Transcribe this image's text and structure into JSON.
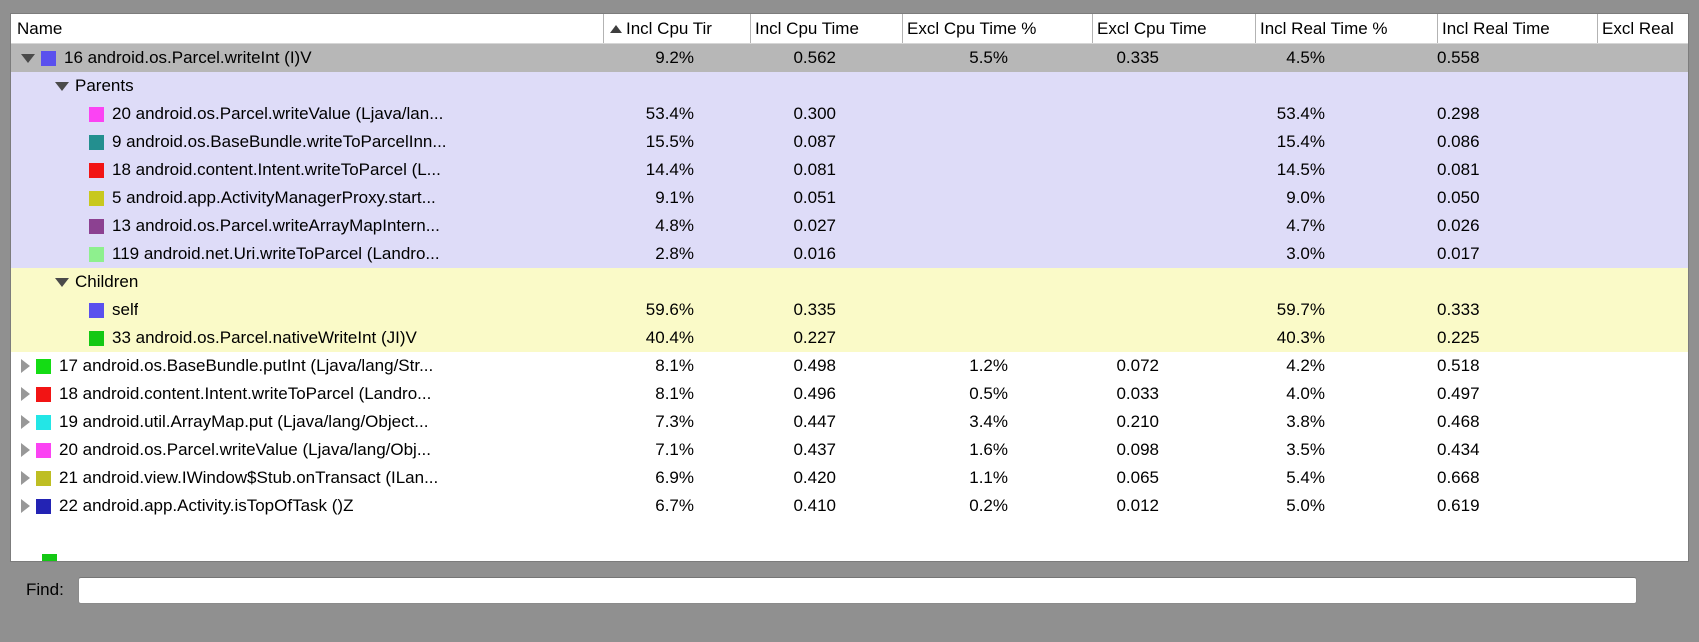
{
  "find": {
    "label": "Find:",
    "value": ""
  },
  "colors": {
    "selected": "#b7b7b7",
    "parents": "#dedcf8",
    "children": "#fafac8",
    "white": "#ffffff",
    "window_chrome": "#909090"
  },
  "table": {
    "columns": [
      {
        "label": "Name",
        "sort": null
      },
      {
        "label": "Incl Cpu Tir",
        "sort": "asc"
      },
      {
        "label": "Incl Cpu Time",
        "sort": null
      },
      {
        "label": "Excl Cpu Time %",
        "sort": null
      },
      {
        "label": "Excl Cpu Time",
        "sort": null
      },
      {
        "label": "Incl Real Time %",
        "sort": null
      },
      {
        "label": "Incl Real Time",
        "sort": null
      },
      {
        "label": "Excl Real",
        "sort": null
      }
    ],
    "rows": [
      {
        "type": "method",
        "state": "expanded",
        "indent": 0,
        "chip": "#5a50ee",
        "bg": "selected",
        "name": "16 android.os.Parcel.writeInt (I)V",
        "values": [
          "9.2%",
          "0.562",
          "5.5%",
          "0.335",
          "4.5%",
          "0.558",
          ""
        ]
      },
      {
        "type": "section",
        "state": "expanded",
        "indent": 1,
        "chip": null,
        "bg": "parents",
        "name": "Parents",
        "values": [
          "",
          "",
          "",
          "",
          "",
          "",
          ""
        ]
      },
      {
        "type": "child",
        "state": null,
        "indent": 2,
        "chip": "#fb43f3",
        "bg": "parents",
        "name": "20 android.os.Parcel.writeValue (Ljava/lan...",
        "values": [
          "53.4%",
          "0.300",
          "",
          "",
          "53.4%",
          "0.298",
          ""
        ]
      },
      {
        "type": "child",
        "state": null,
        "indent": 2,
        "chip": "#238f8f",
        "bg": "parents",
        "name": "9 android.os.BaseBundle.writeToParcelInn...",
        "values": [
          "15.5%",
          "0.087",
          "",
          "",
          "15.4%",
          "0.086",
          ""
        ]
      },
      {
        "type": "child",
        "state": null,
        "indent": 2,
        "chip": "#f21414",
        "bg": "parents",
        "name": "18 android.content.Intent.writeToParcel (L...",
        "values": [
          "14.4%",
          "0.081",
          "",
          "",
          "14.5%",
          "0.081",
          ""
        ]
      },
      {
        "type": "child",
        "state": null,
        "indent": 2,
        "chip": "#c8c81e",
        "bg": "parents",
        "name": "5 android.app.ActivityManagerProxy.start...",
        "values": [
          "9.1%",
          "0.051",
          "",
          "",
          "9.0%",
          "0.050",
          ""
        ]
      },
      {
        "type": "child",
        "state": null,
        "indent": 2,
        "chip": "#8c4191",
        "bg": "parents",
        "name": "13 android.os.Parcel.writeArrayMapIntern...",
        "values": [
          "4.8%",
          "0.027",
          "",
          "",
          "4.7%",
          "0.026",
          ""
        ]
      },
      {
        "type": "child",
        "state": null,
        "indent": 2,
        "chip": "#8ef08e",
        "bg": "parents",
        "name": "119 android.net.Uri.writeToParcel (Landro...",
        "values": [
          "2.8%",
          "0.016",
          "",
          "",
          "3.0%",
          "0.017",
          ""
        ]
      },
      {
        "type": "section",
        "state": "expanded",
        "indent": 1,
        "chip": null,
        "bg": "children",
        "name": "Children",
        "values": [
          "",
          "",
          "",
          "",
          "",
          "",
          ""
        ]
      },
      {
        "type": "child",
        "state": null,
        "indent": 2,
        "chip": "#5a50ee",
        "bg": "children",
        "name": "self",
        "values": [
          "59.6%",
          "0.335",
          "",
          "",
          "59.7%",
          "0.333",
          ""
        ]
      },
      {
        "type": "child",
        "state": null,
        "indent": 2,
        "chip": "#14c814",
        "bg": "children",
        "name": "33 android.os.Parcel.nativeWriteInt (JI)V",
        "values": [
          "40.4%",
          "0.227",
          "",
          "",
          "40.3%",
          "0.225",
          ""
        ]
      },
      {
        "type": "method",
        "state": "collapsed",
        "indent": 0,
        "chip": "#14dc14",
        "bg": "white",
        "name": "17 android.os.BaseBundle.putInt (Ljava/lang/Str...",
        "values": [
          "8.1%",
          "0.498",
          "1.2%",
          "0.072",
          "4.2%",
          "0.518",
          ""
        ]
      },
      {
        "type": "method",
        "state": "collapsed",
        "indent": 0,
        "chip": "#f21414",
        "bg": "white",
        "name": "18 android.content.Intent.writeToParcel (Landro...",
        "values": [
          "8.1%",
          "0.496",
          "0.5%",
          "0.033",
          "4.0%",
          "0.497",
          ""
        ]
      },
      {
        "type": "method",
        "state": "collapsed",
        "indent": 0,
        "chip": "#23e6e6",
        "bg": "white",
        "name": "19 android.util.ArrayMap.put (Ljava/lang/Object...",
        "values": [
          "7.3%",
          "0.447",
          "3.4%",
          "0.210",
          "3.8%",
          "0.468",
          ""
        ]
      },
      {
        "type": "method",
        "state": "collapsed",
        "indent": 0,
        "chip": "#fb43f3",
        "bg": "white",
        "name": "20 android.os.Parcel.writeValue (Ljava/lang/Obj...",
        "values": [
          "7.1%",
          "0.437",
          "1.6%",
          "0.098",
          "3.5%",
          "0.434",
          ""
        ]
      },
      {
        "type": "method",
        "state": "collapsed",
        "indent": 0,
        "chip": "#bebe23",
        "bg": "white",
        "name": "21 android.view.IWindow$Stub.onTransact (ILan...",
        "values": [
          "6.9%",
          "0.420",
          "1.1%",
          "0.065",
          "5.4%",
          "0.668",
          ""
        ]
      },
      {
        "type": "method",
        "state": "collapsed",
        "indent": 0,
        "chip": "#2323b4",
        "bg": "white",
        "name": "22 android.app.Activity.isTopOfTask ()Z",
        "values": [
          "6.7%",
          "0.410",
          "0.2%",
          "0.012",
          "5.0%",
          "0.619",
          ""
        ]
      }
    ],
    "partial_row": {
      "chip": "#14c814"
    }
  }
}
